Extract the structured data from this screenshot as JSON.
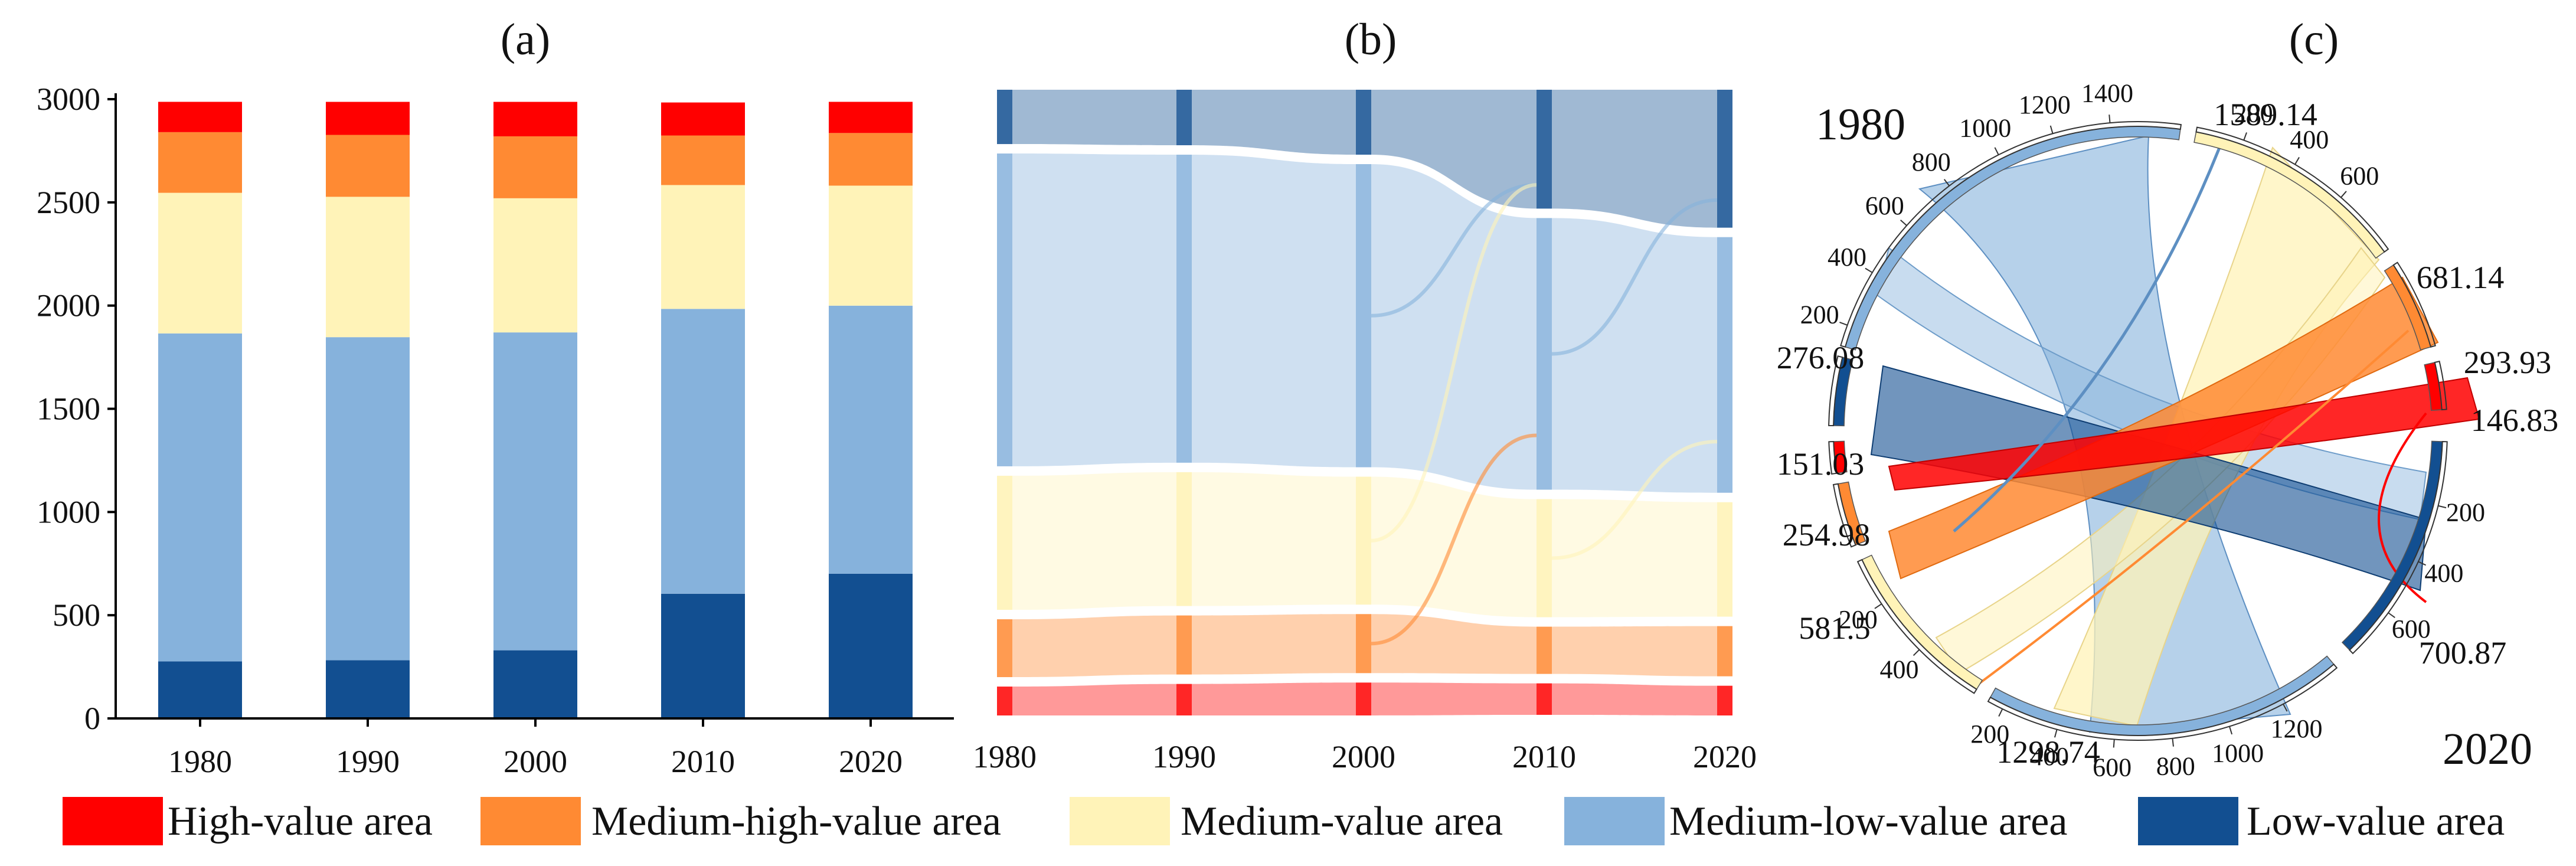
{
  "colors": {
    "high": "#ff0000",
    "medium_high": "#ff8a33",
    "medium": "#fff3b8",
    "medium_low": "#86b2dc",
    "low": "#124f91",
    "axis": "#000000"
  },
  "legend": {
    "items": [
      {
        "label": "High-value area",
        "color": "#ff0000"
      },
      {
        "label": "Medium-high-value area",
        "color": "#ff8a33"
      },
      {
        "label": "Medium-value area",
        "color": "#fff3b8"
      },
      {
        "label": "Medium-low-value area",
        "color": "#86b2dc"
      },
      {
        "label": "Low-value area",
        "color": "#124f91"
      }
    ]
  },
  "chart_data": [
    {
      "panel": "(a)",
      "type": "bar",
      "stacked": true,
      "categories": [
        "1980",
        "1990",
        "2000",
        "2010",
        "2020"
      ],
      "series": [
        {
          "name": "Low-value area",
          "values": [
            276.08,
            282,
            330,
            604,
            700.87
          ]
        },
        {
          "name": "Medium-low-value area",
          "values": [
            1589.14,
            1565,
            1540,
            1380,
            1298.74
          ]
        },
        {
          "name": "Medium-value area",
          "values": [
            681.14,
            680,
            650,
            600,
            581.5
          ]
        },
        {
          "name": "Medium-high-value area",
          "values": [
            293.93,
            300,
            300,
            240,
            254.98
          ]
        },
        {
          "name": "High-value area",
          "values": [
            146.83,
            160,
            167,
            160,
            151.03
          ]
        }
      ],
      "ylim": [
        0,
        3000
      ],
      "yticks": [
        "0",
        "500",
        "1000",
        "1500",
        "2000",
        "2500",
        "3000"
      ],
      "xlabel": "",
      "ylabel": ""
    },
    {
      "panel": "(b)",
      "type": "sankey",
      "categories": [
        "1980",
        "1990",
        "2000",
        "2010",
        "2020"
      ],
      "stack_order_top_to_bottom": [
        "Low-value area",
        "Medium-low-value area",
        "Medium-value area",
        "Medium-high-value area",
        "High-value area"
      ],
      "values": {
        "Low-value area": [
          276.08,
          282,
          330,
          604,
          700.87
        ],
        "Medium-low-value area": [
          1589.14,
          1565,
          1540,
          1380,
          1298.74
        ],
        "Medium-value area": [
          681.14,
          680,
          650,
          600,
          581.5
        ],
        "Medium-high-value area": [
          293.93,
          300,
          300,
          240,
          254.98
        ],
        "High-value area": [
          146.83,
          160,
          167,
          160,
          151.03
        ]
      }
    },
    {
      "panel": "(c)",
      "type": "chord",
      "left_year": "1980",
      "right_year": "2020",
      "totals_1980": [
        {
          "name": "Medium-low-value area",
          "value": "1589.14"
        },
        {
          "name": "Medium-value area",
          "value": "681.14"
        },
        {
          "name": "Medium-high-value area",
          "value": "293.93"
        },
        {
          "name": "High-value area",
          "value": "146.83"
        },
        {
          "name": "Low-value area",
          "value": "276.08"
        }
      ],
      "totals_2020": [
        {
          "name": "Low-value area",
          "value": "700.87"
        },
        {
          "name": "Medium-low-value area",
          "value": "1298.74"
        },
        {
          "name": "Medium-value area",
          "value": "581.5"
        },
        {
          "name": "Medium-high-value area",
          "value": "254.98"
        },
        {
          "name": "High-value area",
          "value": "151.03"
        }
      ],
      "ticks": [
        "200",
        "400",
        "600",
        "800",
        "1000",
        "1200",
        "1400"
      ]
    }
  ]
}
